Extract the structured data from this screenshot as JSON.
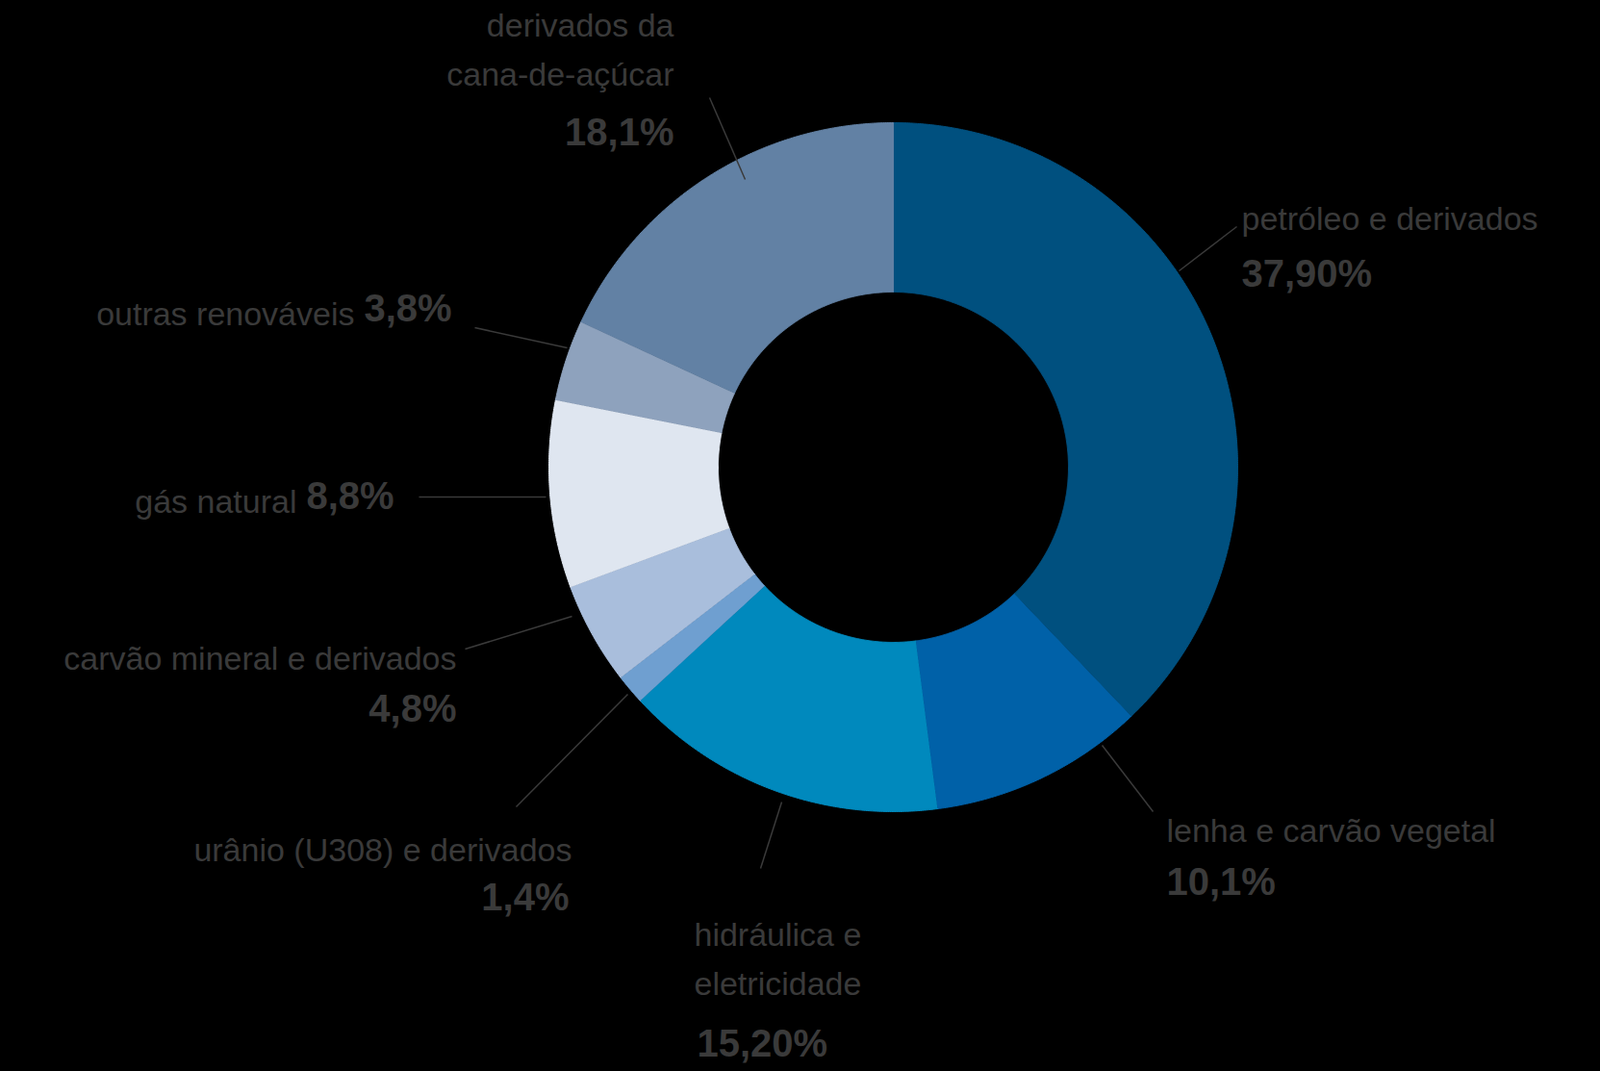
{
  "chart_data": {
    "type": "pie",
    "categories": [
      "petróleo e derivados",
      "lenha e carvão vegetal",
      "hidráulica e\neletricidade",
      "urânio (U308) e derivados",
      "carvão mineral e derivados",
      "gás natural",
      "outras renováveis",
      "derivados da\ncana-de-açúcar"
    ],
    "values": [
      37.9,
      10.1,
      15.2,
      1.4,
      4.8,
      8.8,
      3.8,
      18.1
    ],
    "value_labels": [
      "37,90%",
      "10,1%",
      "15,20%",
      "1,4%",
      "4,8%",
      "8,8%",
      "3,8%",
      "18,1%"
    ],
    "colors": [
      "#00507f",
      "#0061a8",
      "#0089bd",
      "#6f9fd0",
      "#a9bedc",
      "#dfe6f0",
      "#8ea2bd",
      "#6281a4"
    ],
    "data_labels": true
  }
}
